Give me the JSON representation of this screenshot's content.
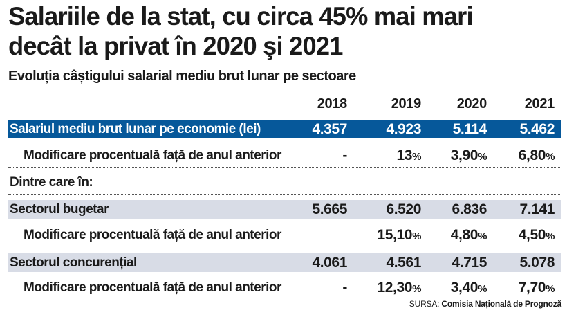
{
  "headline": {
    "line1": "Salariile de la stat, cu circa 45% mai mari",
    "line2": "decât la privat în 2020 şi 2021"
  },
  "chart_data": {
    "type": "table",
    "title": "Evoluția câștigului salarial  mediu brut lunar pe sectoare",
    "columns": [
      "2018",
      "2019",
      "2020",
      "2021"
    ],
    "rows": [
      {
        "label": "Salariul mediu brut lunar pe economie (lei)",
        "values": [
          "4.357",
          "4.923",
          "5.114",
          "5.462"
        ]
      },
      {
        "label": "Modificare procentuală față de anul anterior",
        "values": [
          "-",
          "13",
          "3,90",
          "6,80"
        ]
      },
      {
        "label": "Dintre care în:",
        "values": []
      },
      {
        "label": "Sectorul bugetar",
        "values": [
          "5.665",
          "6.520",
          "6.836",
          "7.141"
        ]
      },
      {
        "label": "Modificare procentuală față de anul anterior",
        "values": [
          "",
          "15,10",
          "4,80",
          "4,50"
        ]
      },
      {
        "label": "Sectorul concurențial",
        "values": [
          "4.061",
          "4.561",
          "4.715",
          "5.078"
        ]
      },
      {
        "label": "Modificare procentuală față de anul anterior",
        "values": [
          "-",
          "12,30",
          "3,40",
          "7,70"
        ]
      }
    ]
  },
  "percent_sign": "%",
  "source": {
    "prefix": "SURSA: ",
    "name": "Comisia Națională de Prognoză"
  },
  "colors": {
    "highlight_row": "#06589a",
    "grey_row": "#d8dce6"
  }
}
